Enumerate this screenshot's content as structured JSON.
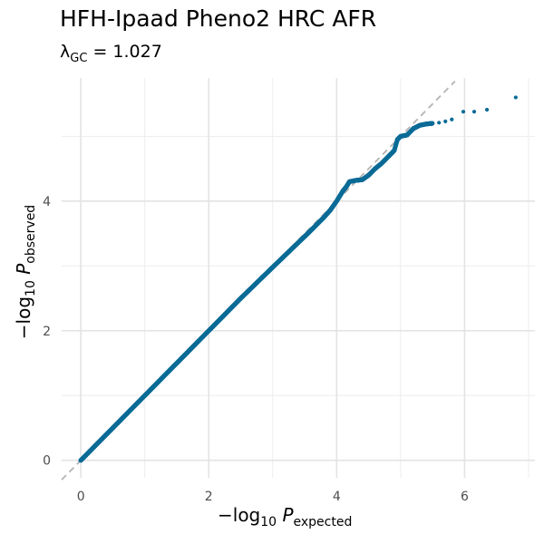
{
  "chart_data": {
    "type": "scatter",
    "title": "HFH-Ipaad Pheno2 HRC AFR",
    "subtitle": {
      "symbol": "λ",
      "subscript": "GC",
      "operator": "=",
      "value": "1.027"
    },
    "xlabel": {
      "prefix": "−log",
      "base": "10",
      "var": "P",
      "subscript": "expected"
    },
    "ylabel": {
      "prefix": "−log",
      "base": "10",
      "var": "P",
      "subscript": "observed"
    },
    "xlim": [
      -0.3,
      7.1
    ],
    "ylim": [
      -0.27,
      5.9
    ],
    "xticks": [
      0,
      2,
      4,
      6
    ],
    "yticks": [
      0,
      2,
      4
    ],
    "grid": true,
    "reference_line": "y = x",
    "point_color": "#0a6b96",
    "reference_color": "#b3b3b3",
    "series": [
      {
        "x": [
          0,
          0.5,
          1.0,
          1.5,
          2.0,
          2.5,
          3.0,
          3.2,
          3.4,
          3.6,
          3.8,
          3.9,
          4.0,
          4.05,
          4.1,
          4.15,
          4.2,
          4.3,
          4.4,
          4.5,
          4.6,
          4.7,
          4.8,
          4.9,
          4.95,
          5.0,
          5.1,
          5.2,
          5.3,
          5.4,
          5.5,
          5.6,
          5.7,
          5.8,
          5.98,
          6.15,
          6.35,
          6.8
        ],
        "y": [
          0,
          0.5,
          1.0,
          1.5,
          2.0,
          2.5,
          2.98,
          3.17,
          3.36,
          3.55,
          3.75,
          3.86,
          4.0,
          4.08,
          4.16,
          4.22,
          4.3,
          4.32,
          4.33,
          4.4,
          4.5,
          4.58,
          4.68,
          4.78,
          4.95,
          5.0,
          5.02,
          5.12,
          5.17,
          5.19,
          5.2,
          5.21,
          5.23,
          5.26,
          5.38,
          5.38,
          5.41,
          5.6
        ]
      }
    ]
  }
}
